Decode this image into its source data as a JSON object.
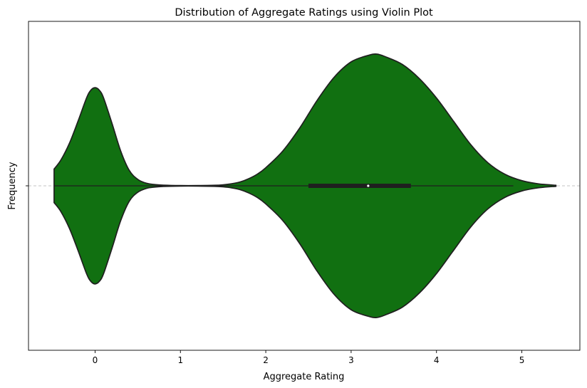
{
  "chart_data": {
    "type": "violin",
    "title": "Distribution of Aggregate Ratings using Violin Plot",
    "xlabel": "Aggregate Rating",
    "ylabel": "Frequency",
    "xlim": [
      -0.78,
      5.68
    ],
    "xticks": [
      0,
      1,
      2,
      3,
      4,
      5
    ],
    "ytick_labels": [
      ""
    ],
    "grid": "dashed horizontal line at center",
    "color": "#117011",
    "edge_color": "#1f1f1f",
    "data_range": [
      -0.48,
      5.4
    ],
    "quartiles": {
      "q1": 2.5,
      "median": 3.2,
      "q3": 3.7
    },
    "whiskers": [
      -0.48,
      4.9
    ],
    "density": {
      "x": [
        -0.48,
        -0.4,
        -0.3,
        -0.2,
        -0.1,
        -0.05,
        0,
        0.05,
        0.1,
        0.2,
        0.3,
        0.4,
        0.5,
        0.6,
        0.7,
        0.8,
        1.0,
        1.2,
        1.4,
        1.5,
        1.6,
        1.7,
        1.8,
        1.9,
        2.0,
        2.2,
        2.4,
        2.6,
        2.8,
        3.0,
        3.2,
        3.3,
        3.4,
        3.6,
        3.8,
        4.0,
        4.2,
        4.4,
        4.6,
        4.8,
        5.0,
        5.2,
        5.4
      ],
      "y": [
        0.13,
        0.2,
        0.33,
        0.5,
        0.68,
        0.74,
        0.76,
        0.74,
        0.68,
        0.48,
        0.27,
        0.12,
        0.05,
        0.02,
        0.01,
        0.005,
        0.002,
        0.002,
        0.004,
        0.008,
        0.016,
        0.03,
        0.055,
        0.09,
        0.14,
        0.27,
        0.45,
        0.66,
        0.84,
        0.96,
        1.01,
        1.02,
        1.0,
        0.94,
        0.83,
        0.68,
        0.5,
        0.32,
        0.18,
        0.09,
        0.04,
        0.015,
        0.004
      ]
    }
  }
}
